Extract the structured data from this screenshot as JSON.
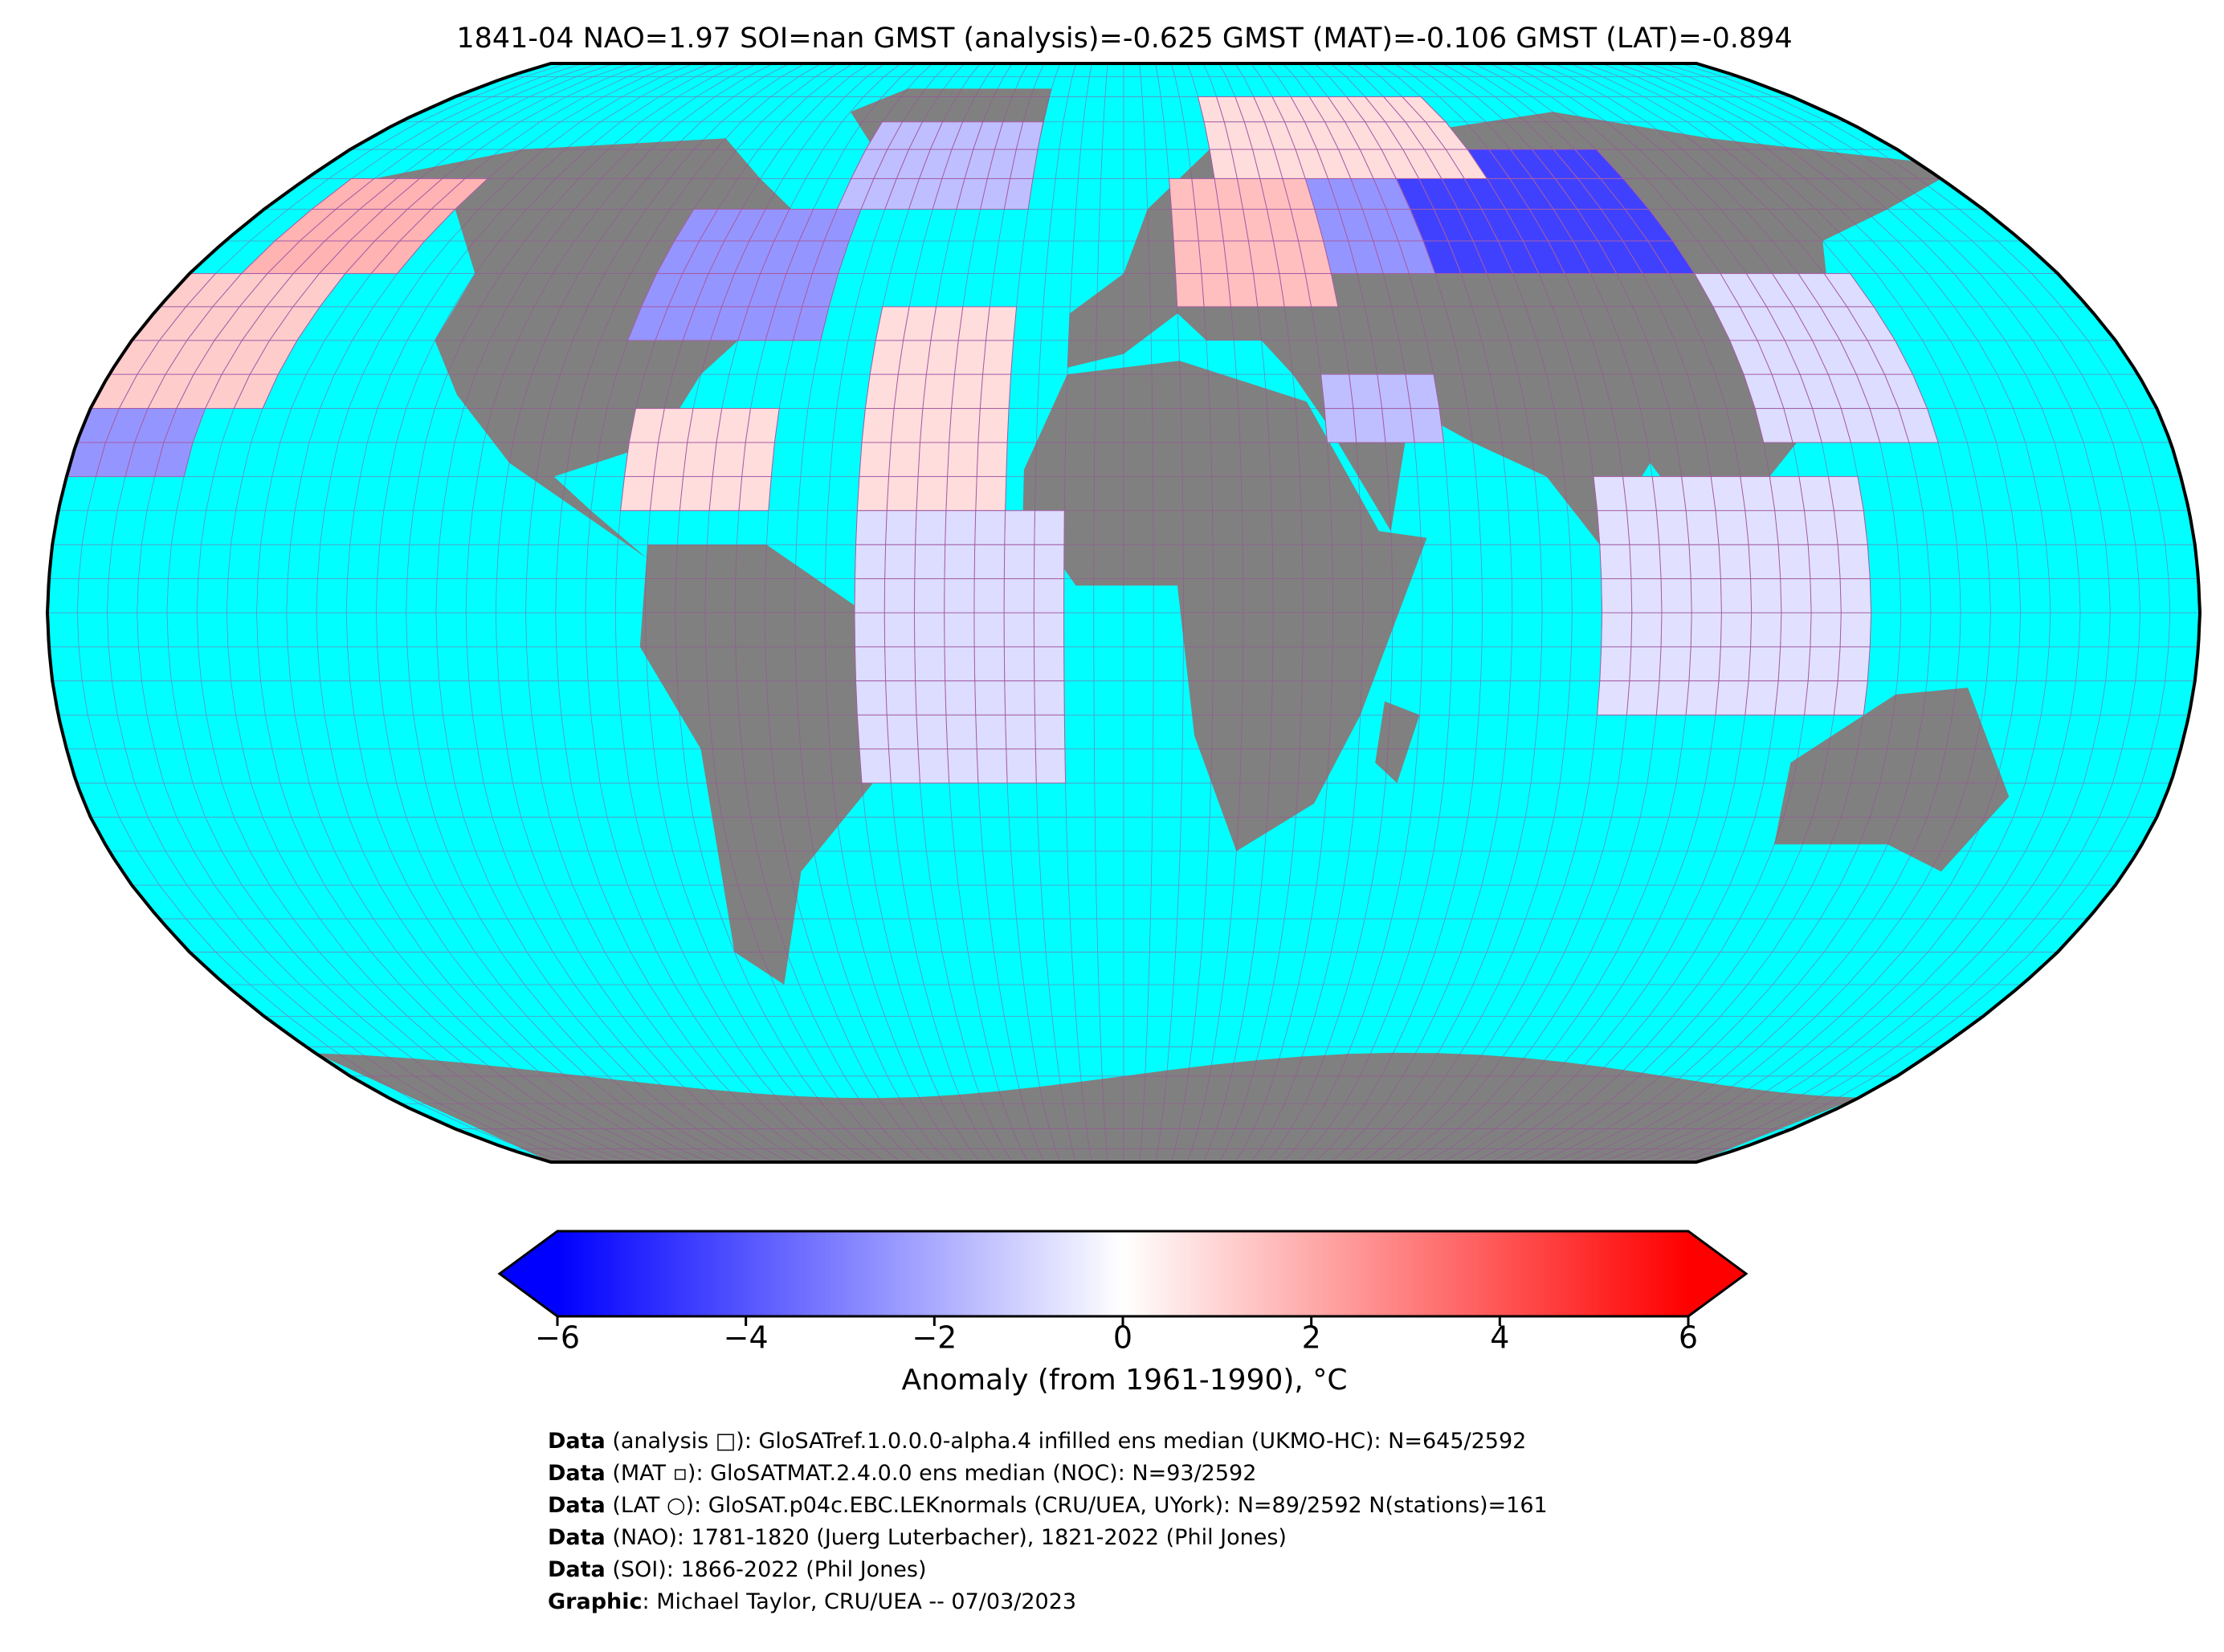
{
  "title": "1841-04 NAO=1.97 SOI=nan GMST (analysis)=-0.625 GMST (MAT)=-0.106 GMST (LAT)=-0.894",
  "map": {
    "cells": [
      {
        "lon": [
          60,
          110
        ],
        "lat": [
          50,
          70
        ],
        "anomaly": -4.5
      },
      {
        "lon": [
          40,
          60
        ],
        "lat": [
          50,
          65
        ],
        "anomaly": -2.5
      },
      {
        "lon": [
          10,
          40
        ],
        "lat": [
          45,
          65
        ],
        "anomaly": 1.5
      },
      {
        "lon": [
          20,
          80
        ],
        "lat": [
          65,
          80
        ],
        "anomaly": 0.8
      },
      {
        "lon": [
          -90,
          -55
        ],
        "lat": [
          40,
          60
        ],
        "anomaly": -2.5
      },
      {
        "lon": [
          -60,
          -20
        ],
        "lat": [
          60,
          75
        ],
        "anomaly": -1.5
      },
      {
        "lon": [
          -45,
          -20
        ],
        "lat": [
          15,
          45
        ],
        "anomaly": 0.8
      },
      {
        "lon": [
          -45,
          -10
        ],
        "lat": [
          -25,
          15
        ],
        "anomaly": -0.8
      },
      {
        "lon": [
          -170,
          -140
        ],
        "lat": [
          50,
          65
        ],
        "anomaly": 1.8
      },
      {
        "lon": [
          -180,
          -150
        ],
        "lat": [
          30,
          50
        ],
        "anomaly": 1.2
      },
      {
        "lon": [
          -180,
          -160
        ],
        "lat": [
          20,
          30
        ],
        "anomaly": -2.5
      },
      {
        "lon": [
          80,
          125
        ],
        "lat": [
          -15,
          20
        ],
        "anomaly": -0.7
      },
      {
        "lon": [
          110,
          140
        ],
        "lat": [
          25,
          50
        ],
        "anomaly": -0.8
      },
      {
        "lon": [
          35,
          55
        ],
        "lat": [
          25,
          35
        ],
        "anomaly": -1.5
      },
      {
        "lon": [
          -85,
          -60
        ],
        "lat": [
          15,
          30
        ],
        "anomaly": 0.8
      }
    ]
  },
  "colorbar": {
    "label": "Anomaly (from 1961-1990), °C",
    "lim": [
      -6,
      6
    ],
    "ticks": [
      {
        "value": -6,
        "label": "−6"
      },
      {
        "value": -4,
        "label": "−4"
      },
      {
        "value": -2,
        "label": "−2"
      },
      0,
      2,
      4,
      6
    ]
  },
  "footer": [
    {
      "label": "Data",
      "text": " (analysis □): GloSATref.1.0.0.0-alpha.4 infilled ens median (UKMO-HC): N=645/2592"
    },
    {
      "label": "Data",
      "text": " (MAT ▫): GloSATMAT.2.4.0.0 ens median (NOC): N=93/2592"
    },
    {
      "label": "Data",
      "text": " (LAT ○): GloSAT.p04c.EBC.LEKnormals (CRU/UEA, UYork): N=89/2592 N(stations)=161"
    },
    {
      "label": "Data",
      "text": " (NAO): 1781-1820 (Juerg Luterbacher), 1821-2022 (Phil Jones)"
    },
    {
      "label": "Data",
      "text": " (SOI): 1866-2022 (Phil Jones)"
    },
    {
      "label": "Graphic",
      "text": ": Michael Taylor, CRU/UEA -- 07/03/2023"
    }
  ]
}
